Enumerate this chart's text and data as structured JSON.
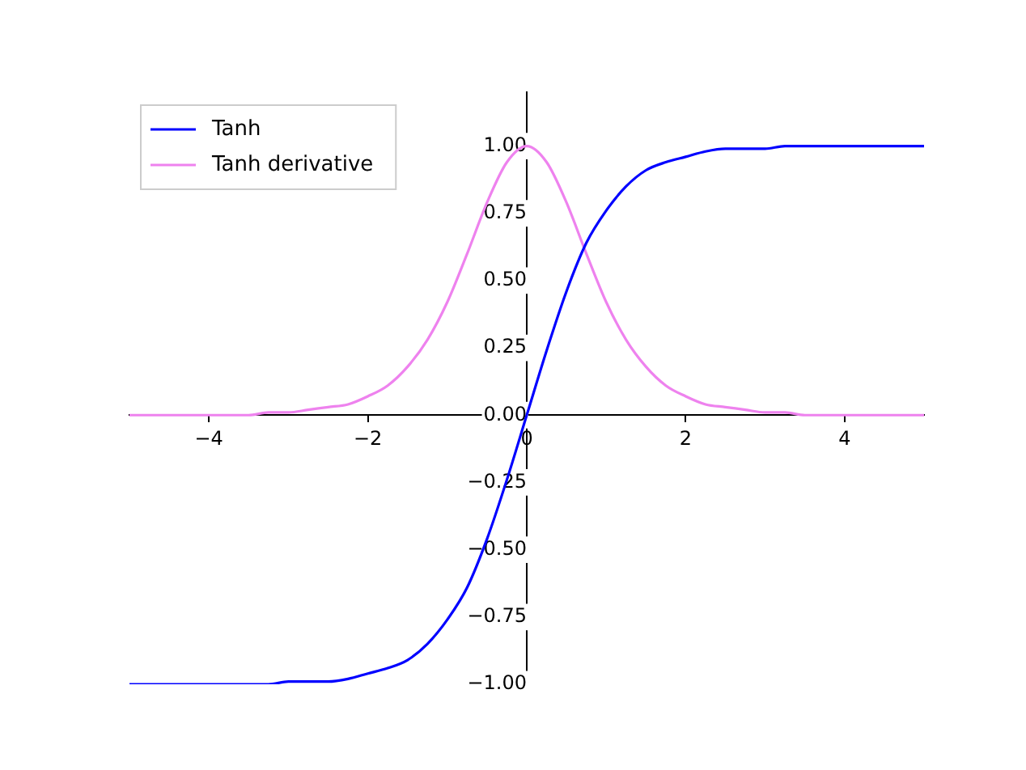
{
  "chart_data": {
    "type": "line",
    "x": [
      -5,
      -4.75,
      -4.5,
      -4.25,
      -4,
      -3.75,
      -3.5,
      -3.25,
      -3,
      -2.75,
      -2.5,
      -2.25,
      -2,
      -1.75,
      -1.5,
      -1.25,
      -1,
      -0.75,
      -0.5,
      -0.25,
      0,
      0.25,
      0.5,
      0.75,
      1,
      1.25,
      1.5,
      1.75,
      2,
      2.25,
      2.5,
      2.75,
      3,
      3.25,
      3.5,
      3.75,
      4,
      4.25,
      4.5,
      4.75,
      5
    ],
    "series": [
      {
        "name": "Tanh",
        "color": "#0000ff",
        "values": [
          -1.0,
          -1.0,
          -1.0,
          -1.0,
          -1.0,
          -1.0,
          -1.0,
          -1.0,
          -0.99,
          -0.99,
          -0.99,
          -0.98,
          -0.96,
          -0.94,
          -0.91,
          -0.85,
          -0.76,
          -0.64,
          -0.46,
          -0.24,
          0,
          0.24,
          0.46,
          0.64,
          0.76,
          0.85,
          0.91,
          0.94,
          0.96,
          0.98,
          0.99,
          0.99,
          0.99,
          1.0,
          1.0,
          1.0,
          1.0,
          1.0,
          1.0,
          1.0,
          1.0
        ]
      },
      {
        "name": "Tanh derivative",
        "color": "#ee82ee",
        "values": [
          0,
          0,
          0,
          0,
          0,
          0,
          0,
          0.01,
          0.01,
          0.02,
          0.03,
          0.04,
          0.07,
          0.11,
          0.18,
          0.28,
          0.42,
          0.6,
          0.79,
          0.94,
          1.0,
          0.94,
          0.79,
          0.6,
          0.42,
          0.28,
          0.18,
          0.11,
          0.07,
          0.04,
          0.03,
          0.02,
          0.01,
          0.01,
          0,
          0,
          0,
          0,
          0,
          0,
          0
        ]
      }
    ],
    "xlim": [
      -5,
      5
    ],
    "xticks": [
      -4,
      -2,
      0,
      2,
      4
    ],
    "ylim": [
      -1,
      1.2
    ],
    "yticks": [
      {
        "value": -1,
        "label": "−1.00"
      },
      {
        "value": -0.75,
        "label": "−0.75"
      },
      {
        "value": -0.5,
        "label": "−0.50"
      },
      {
        "value": -0.25,
        "label": "−0.25"
      },
      {
        "value": 0,
        "label": "0.00"
      },
      {
        "value": 0.25,
        "label": "0.25"
      },
      {
        "value": 0.5,
        "label": "0.50"
      },
      {
        "value": 0.75,
        "label": "0.75"
      },
      {
        "value": 1,
        "label": "1.00"
      }
    ],
    "grid": false,
    "legend": "top left",
    "marker": "none",
    "line_style": "solid"
  }
}
